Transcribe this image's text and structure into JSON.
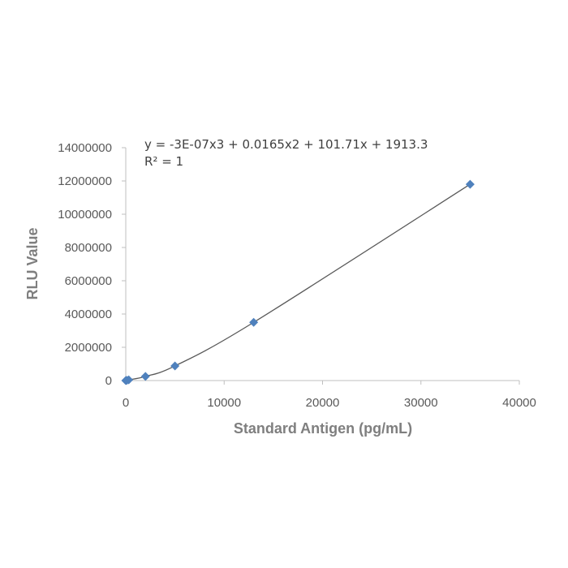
{
  "chart_data": {
    "type": "scatter",
    "title": "",
    "xlabel": "Standard Antigen (pg/mL)",
    "ylabel": "RLU Value",
    "xlim": [
      0,
      40000
    ],
    "ylim": [
      0,
      14000000
    ],
    "x_ticks": [
      "0",
      "10000",
      "20000",
      "30000",
      "40000"
    ],
    "y_ticks": [
      "0",
      "2000000",
      "4000000",
      "6000000",
      "8000000",
      "10000000",
      "12000000",
      "14000000"
    ],
    "grid": false,
    "legend": false,
    "marker_color": "#4f81bd",
    "trendline_color": "#595959",
    "points": [
      {
        "x": 0,
        "y": 0
      },
      {
        "x": 100,
        "y": 15000
      },
      {
        "x": 300,
        "y": 40000
      },
      {
        "x": 2000,
        "y": 250000
      },
      {
        "x": 5000,
        "y": 880000
      },
      {
        "x": 13000,
        "y": 3500000
      },
      {
        "x": 35000,
        "y": 11800000
      }
    ],
    "trendline": {
      "type": "polynomial",
      "coefficients": {
        "a3": -3e-07,
        "a2": 0.0165,
        "a1": 101.71,
        "a0": 1913.3
      },
      "equation": "y = -3E-07x3 + 0.0165x2 + 101.71x + 1913.3",
      "r_squared": "R² = 1"
    }
  }
}
